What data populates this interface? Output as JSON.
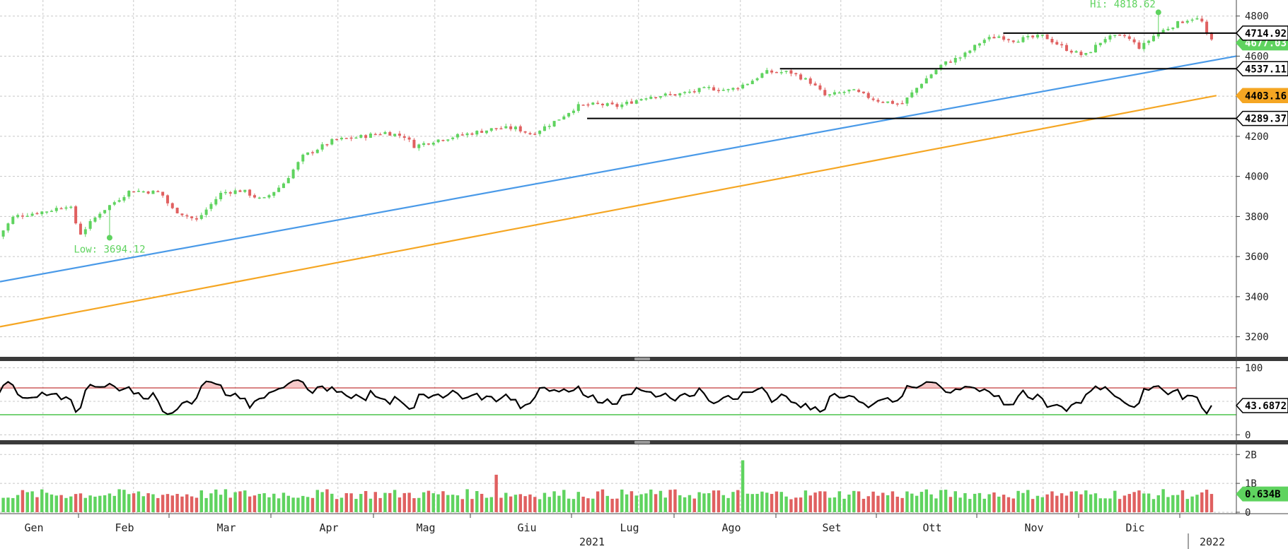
{
  "chart_data": {
    "type": "candlestick",
    "year_label": "2021",
    "next_year_label": "2022",
    "months": [
      "Gen",
      "Feb",
      "Mar",
      "Apr",
      "Mag",
      "Giu",
      "Lug",
      "Ago",
      "Set",
      "Ott",
      "Nov",
      "Dic"
    ],
    "price": {
      "yticks": [
        3200,
        3400,
        3600,
        3800,
        4000,
        4200,
        4400,
        4600,
        4800
      ],
      "ylim": [
        3100,
        4880
      ],
      "high_annotation": "Hi: 4818.62",
      "low_annotation": "Low: 3694.12",
      "high_value": 4818.62,
      "low_value": 3694.12,
      "levels": [
        {
          "value": 4714.92,
          "label": "4714.92",
          "from_month": 9.9
        },
        {
          "value": 4537.11,
          "label": "4537.11",
          "from_month": 7.7
        },
        {
          "value": 4289.37,
          "label": "4289.37",
          "from_month": 5.8
        }
      ],
      "hidden_last_label": "4677.03",
      "trendline": {
        "start_value": 3475,
        "end_value": 4600,
        "color": "#4a9ae8"
      },
      "moving_average": {
        "label": "4403.16",
        "start_value": 3250,
        "end_value": 4403.16,
        "color": "#f5a623"
      },
      "anchors": [
        [
          0,
          3700
        ],
        [
          0.15,
          3800
        ],
        [
          0.5,
          3830
        ],
        [
          0.7,
          3860
        ],
        [
          0.8,
          3710
        ],
        [
          1.0,
          3820
        ],
        [
          1.3,
          3930
        ],
        [
          1.6,
          3920
        ],
        [
          1.7,
          3840
        ],
        [
          1.95,
          3780
        ],
        [
          2.2,
          3920
        ],
        [
          2.4,
          3930
        ],
        [
          2.6,
          3880
        ],
        [
          2.8,
          3960
        ],
        [
          3.0,
          4100
        ],
        [
          3.3,
          4180
        ],
        [
          3.6,
          4200
        ],
        [
          3.8,
          4220
        ],
        [
          4.0,
          4200
        ],
        [
          4.1,
          4150
        ],
        [
          4.3,
          4180
        ],
        [
          4.6,
          4210
        ],
        [
          4.9,
          4240
        ],
        [
          5.1,
          4240
        ],
        [
          5.25,
          4210
        ],
        [
          5.5,
          4280
        ],
        [
          5.7,
          4350
        ],
        [
          5.9,
          4360
        ],
        [
          6.1,
          4350
        ],
        [
          6.4,
          4400
        ],
        [
          6.7,
          4410
        ],
        [
          7.0,
          4440
        ],
        [
          7.2,
          4430
        ],
        [
          7.4,
          4470
        ],
        [
          7.55,
          4520
        ],
        [
          7.8,
          4520
        ],
        [
          8.0,
          4470
        ],
        [
          8.15,
          4400
        ],
        [
          8.4,
          4430
        ],
        [
          8.65,
          4380
        ],
        [
          8.9,
          4360
        ],
        [
          9.1,
          4470
        ],
        [
          9.3,
          4560
        ],
        [
          9.5,
          4600
        ],
        [
          9.7,
          4680
        ],
        [
          9.85,
          4700
        ],
        [
          10.0,
          4680
        ],
        [
          10.3,
          4700
        ],
        [
          10.5,
          4640
        ],
        [
          10.7,
          4600
        ],
        [
          10.9,
          4690
        ],
        [
          11.1,
          4700
        ],
        [
          11.25,
          4640
        ],
        [
          11.4,
          4710
        ],
        [
          11.6,
          4760
        ],
        [
          11.75,
          4790
        ],
        [
          11.85,
          4780
        ],
        [
          11.92,
          4680
        ],
        [
          12.0,
          4677
        ]
      ]
    },
    "rsi": {
      "yticks": [
        0,
        100
      ],
      "upper_band": 70,
      "lower_band": 30,
      "current_label": "43.6872",
      "ylim": [
        -8,
        110
      ]
    },
    "volume": {
      "ytick_labels": [
        "0",
        "1B",
        "2B"
      ],
      "ylim": [
        -0.05,
        2.35
      ],
      "current_label": "0.634B",
      "up_color": "#5fd35f",
      "down_color": "#e06060"
    },
    "colors": {
      "up": "#5fd35f",
      "down": "#e06060",
      "grid": "#c8c8c8"
    }
  }
}
